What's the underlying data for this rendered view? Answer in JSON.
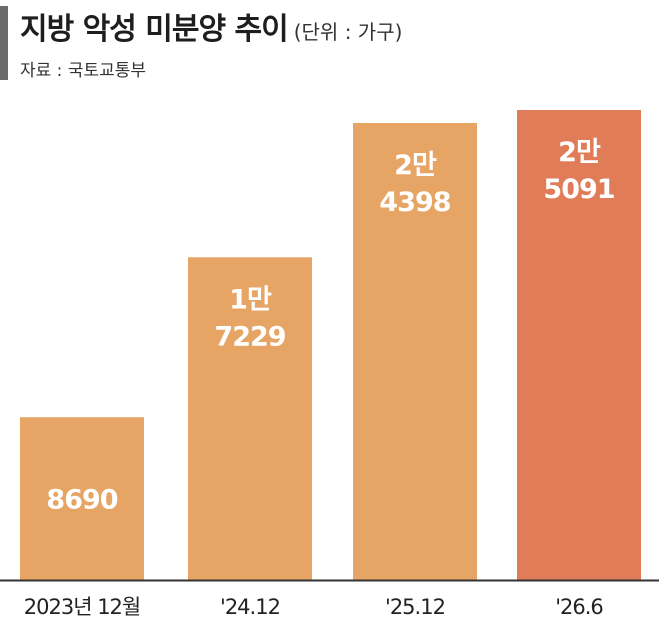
{
  "header": {
    "title": "지방 악성 미분양 추이",
    "unit": "(단위 : 가구)",
    "source": "자료 : 국토교통부"
  },
  "colors": {
    "bar": "#E6A564",
    "bar_highlight": "#E07C58",
    "axis": "#333333",
    "accent": "#6B6B6B"
  },
  "chart_data": {
    "type": "bar",
    "title": "지방 악성 미분양 추이",
    "ylabel": "",
    "xlabel": "",
    "unit": "(단위 : 가구)",
    "categories": [
      "2023년 12월",
      "'24.12",
      "'25.12",
      "'26.6"
    ],
    "values": [
      8690,
      17229,
      24398,
      25091
    ],
    "data_labels": [
      [
        "8690"
      ],
      [
        "1만",
        "7229"
      ],
      [
        "2만",
        "4398"
      ],
      [
        "2만",
        "5091"
      ]
    ],
    "highlight_index": 3,
    "ylim": [
      0,
      25091
    ],
    "grid": false,
    "legend": "none"
  }
}
